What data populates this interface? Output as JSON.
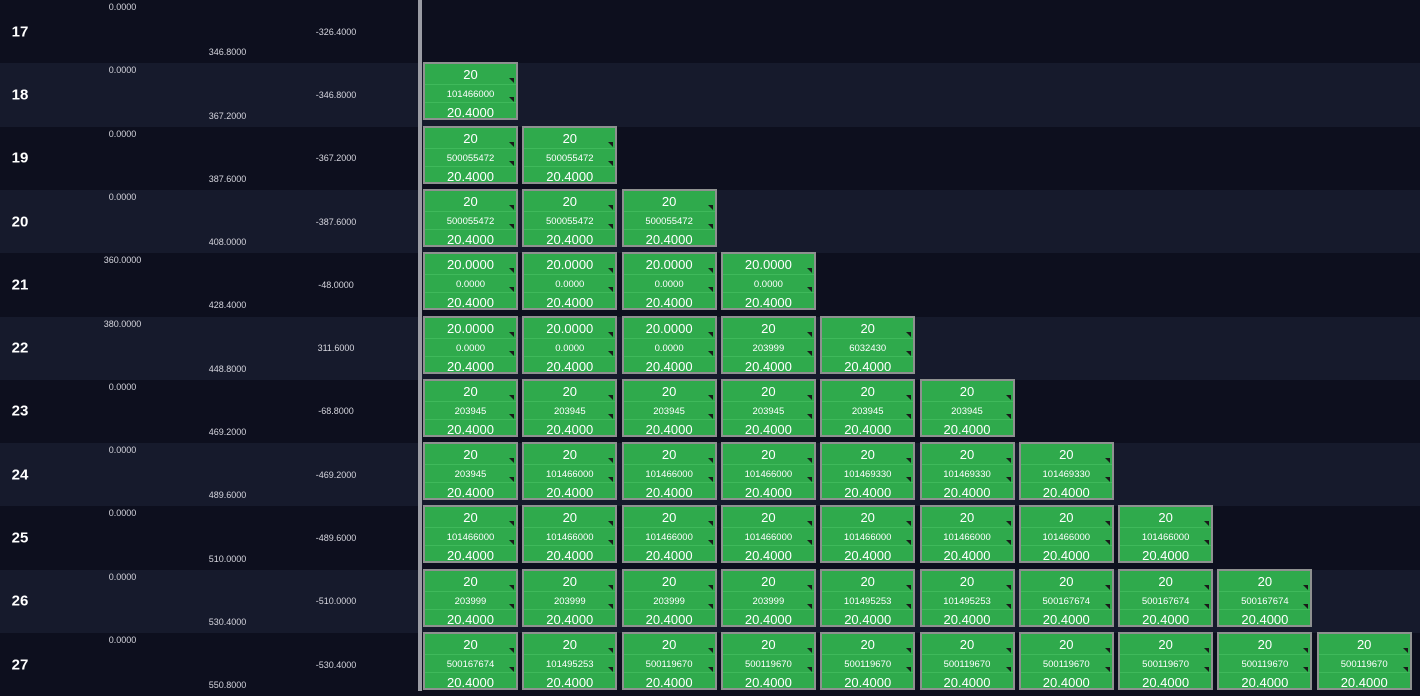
{
  "rows": [
    {
      "num": "17",
      "a": "0.0000",
      "b": "346.8000",
      "c": "-326.4000",
      "cells": []
    },
    {
      "num": "18",
      "a": "0.0000",
      "b": "367.2000",
      "c": "-346.8000",
      "cells": [
        [
          "20",
          "101466000",
          "20.4000"
        ]
      ]
    },
    {
      "num": "19",
      "a": "0.0000",
      "b": "387.6000",
      "c": "-367.2000",
      "cells": [
        [
          "20",
          "500055472",
          "20.4000"
        ],
        [
          "20",
          "500055472",
          "20.4000"
        ]
      ]
    },
    {
      "num": "20",
      "a": "0.0000",
      "b": "408.0000",
      "c": "-387.6000",
      "cells": [
        [
          "20",
          "500055472",
          "20.4000"
        ],
        [
          "20",
          "500055472",
          "20.4000"
        ],
        [
          "20",
          "500055472",
          "20.4000"
        ]
      ]
    },
    {
      "num": "21",
      "a": "360.0000",
      "b": "428.4000",
      "c": "-48.0000",
      "cells": [
        [
          "20.0000",
          "0.0000",
          "20.4000"
        ],
        [
          "20.0000",
          "0.0000",
          "20.4000"
        ],
        [
          "20.0000",
          "0.0000",
          "20.4000"
        ],
        [
          "20.0000",
          "0.0000",
          "20.4000"
        ]
      ]
    },
    {
      "num": "22",
      "a": "380.0000",
      "b": "448.8000",
      "c": "311.6000",
      "cells": [
        [
          "20.0000",
          "0.0000",
          "20.4000"
        ],
        [
          "20.0000",
          "0.0000",
          "20.4000"
        ],
        [
          "20.0000",
          "0.0000",
          "20.4000"
        ],
        [
          "20",
          "203999",
          "20.4000"
        ],
        [
          "20",
          "6032430",
          "20.4000"
        ]
      ]
    },
    {
      "num": "23",
      "a": "0.0000",
      "b": "469.2000",
      "c": "-68.8000",
      "cells": [
        [
          "20",
          "203945",
          "20.4000"
        ],
        [
          "20",
          "203945",
          "20.4000"
        ],
        [
          "20",
          "203945",
          "20.4000"
        ],
        [
          "20",
          "203945",
          "20.4000"
        ],
        [
          "20",
          "203945",
          "20.4000"
        ],
        [
          "20",
          "203945",
          "20.4000"
        ]
      ]
    },
    {
      "num": "24",
      "a": "0.0000",
      "b": "489.6000",
      "c": "-469.2000",
      "cells": [
        [
          "20",
          "203945",
          "20.4000"
        ],
        [
          "20",
          "101466000",
          "20.4000"
        ],
        [
          "20",
          "101466000",
          "20.4000"
        ],
        [
          "20",
          "101466000",
          "20.4000"
        ],
        [
          "20",
          "101469330",
          "20.4000"
        ],
        [
          "20",
          "101469330",
          "20.4000"
        ],
        [
          "20",
          "101469330",
          "20.4000"
        ]
      ]
    },
    {
      "num": "25",
      "a": "0.0000",
      "b": "510.0000",
      "c": "-489.6000",
      "cells": [
        [
          "20",
          "101466000",
          "20.4000"
        ],
        [
          "20",
          "101466000",
          "20.4000"
        ],
        [
          "20",
          "101466000",
          "20.4000"
        ],
        [
          "20",
          "101466000",
          "20.4000"
        ],
        [
          "20",
          "101466000",
          "20.4000"
        ],
        [
          "20",
          "101466000",
          "20.4000"
        ],
        [
          "20",
          "101466000",
          "20.4000"
        ],
        [
          "20",
          "101466000",
          "20.4000"
        ]
      ]
    },
    {
      "num": "26",
      "a": "0.0000",
      "b": "530.4000",
      "c": "-510.0000",
      "cells": [
        [
          "20",
          "203999",
          "20.4000"
        ],
        [
          "20",
          "203999",
          "20.4000"
        ],
        [
          "20",
          "203999",
          "20.4000"
        ],
        [
          "20",
          "203999",
          "20.4000"
        ],
        [
          "20",
          "101495253",
          "20.4000"
        ],
        [
          "20",
          "101495253",
          "20.4000"
        ],
        [
          "20",
          "500167674",
          "20.4000"
        ],
        [
          "20",
          "500167674",
          "20.4000"
        ],
        [
          "20",
          "500167674",
          "20.4000"
        ]
      ]
    },
    {
      "num": "27",
      "a": "0.0000",
      "b": "550.8000",
      "c": "-530.4000",
      "cells": [
        [
          "20",
          "500167674",
          "20.4000"
        ],
        [
          "20",
          "101495253",
          "20.4000"
        ],
        [
          "20",
          "500119670",
          "20.4000"
        ],
        [
          "20",
          "500119670",
          "20.4000"
        ],
        [
          "20",
          "500119670",
          "20.4000"
        ],
        [
          "20",
          "500119670",
          "20.4000"
        ],
        [
          "20",
          "500119670",
          "20.4000"
        ],
        [
          "20",
          "500119670",
          "20.4000"
        ],
        [
          "20",
          "500119670",
          "20.4000"
        ],
        [
          "20",
          "500119670",
          "20.4000"
        ]
      ]
    }
  ]
}
